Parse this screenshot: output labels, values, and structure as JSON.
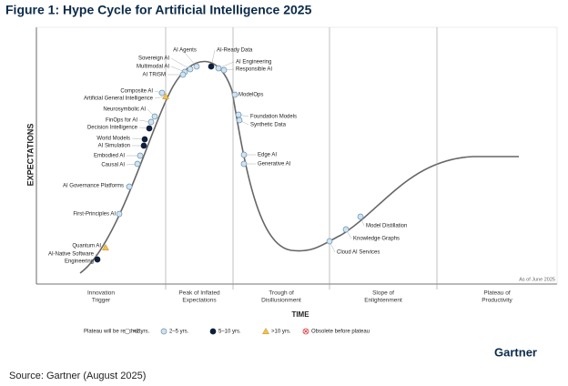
{
  "header": {
    "title": "Figure 1: Hype Cycle for Artificial Intelligence 2025"
  },
  "axes": {
    "y": "EXPECTATIONS",
    "x": "TIME"
  },
  "as_of": "As of June 2025",
  "phases": [
    [
      "Innovation",
      "Trigger"
    ],
    [
      "Peak of Inflated",
      "Expectations"
    ],
    [
      "Trough of",
      "Disillusionment"
    ],
    [
      "Slope of",
      "Enlightenment"
    ],
    [
      "Plateau of",
      "Productivity"
    ]
  ],
  "legend_title": "Plateau will be reached:",
  "plateau_groups": [
    {
      "label": "<2 yrs."
    },
    {
      "label": "2–5 yrs.",
      "technologies": [
        "AI Agents",
        "Sovereign AI",
        "Multimodal AI",
        "AI TRiSM",
        "AI Engineering",
        "Responsible AI",
        "ModelOps",
        "Foundation Models",
        "Synthetic Data",
        "Edge AI",
        "Generative AI",
        "Cloud AI Services",
        "Knowledge Graphs",
        "Model Distillation",
        "Composite AI",
        "Neurosymbolic AI",
        "FinOps for AI",
        "Embodied AI",
        "Causal AI",
        "AI Governance Platforms",
        "First-Principles AI"
      ]
    },
    {
      "label": "5–10 yrs.",
      "technologies": [
        "AI-Ready Data",
        "Decision Intelligence",
        "World Models",
        "AI Simulation",
        [
          "AI-Native Software",
          "Engineering"
        ]
      ]
    },
    {
      "label": ">10 yrs.",
      "technologies": [
        "Artificial General Intelligence",
        "Quantum AI"
      ]
    },
    {
      "label": "Obsolete before plateau"
    }
  ],
  "brand": "Gartner",
  "source": "Source: Gartner (August 2025)"
}
